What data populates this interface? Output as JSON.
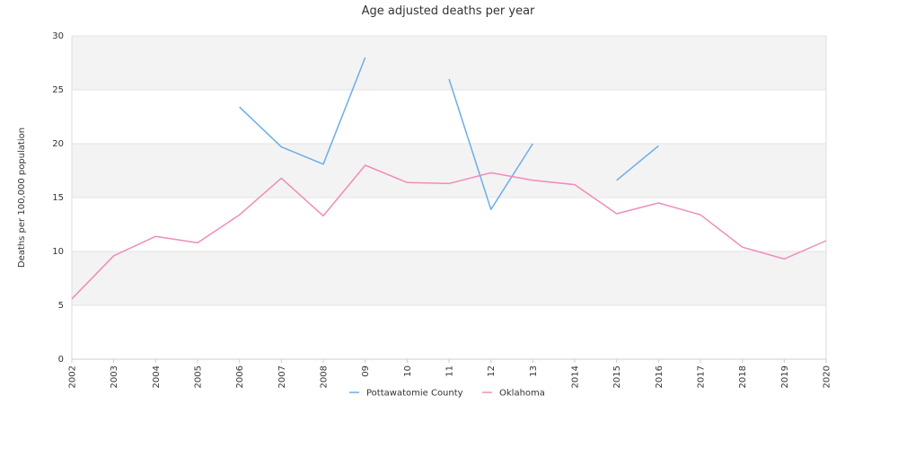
{
  "chart_data": {
    "type": "line",
    "title": "Age adjusted deaths per year",
    "xlabel": "",
    "ylabel": "Deaths per 100,000 population",
    "ylim": [
      0,
      30
    ],
    "yticks": [
      0,
      5,
      10,
      15,
      20,
      25,
      30
    ],
    "grid": true,
    "legend_position": "bottom",
    "categories": [
      "2002",
      "2003",
      "2004",
      "2005",
      "2006",
      "2007",
      "2008",
      "09",
      "10",
      "11",
      "12",
      "13",
      "2014",
      "2015",
      "2016",
      "2017",
      "2018",
      "2019",
      "2020"
    ],
    "series": [
      {
        "name": "Pottawatomie County",
        "color": "#6aaee8",
        "values": [
          null,
          null,
          null,
          null,
          23.4,
          19.7,
          18.1,
          28.0,
          null,
          26.0,
          13.9,
          20.0,
          null,
          16.6,
          19.8,
          null,
          null,
          null,
          null
        ]
      },
      {
        "name": "Oklahoma",
        "color": "#f08cbb",
        "values": [
          5.6,
          9.6,
          11.4,
          10.8,
          13.4,
          16.8,
          13.3,
          18.0,
          16.4,
          16.3,
          17.3,
          16.6,
          16.2,
          13.5,
          14.5,
          13.4,
          10.4,
          9.3,
          11.0
        ]
      }
    ]
  }
}
